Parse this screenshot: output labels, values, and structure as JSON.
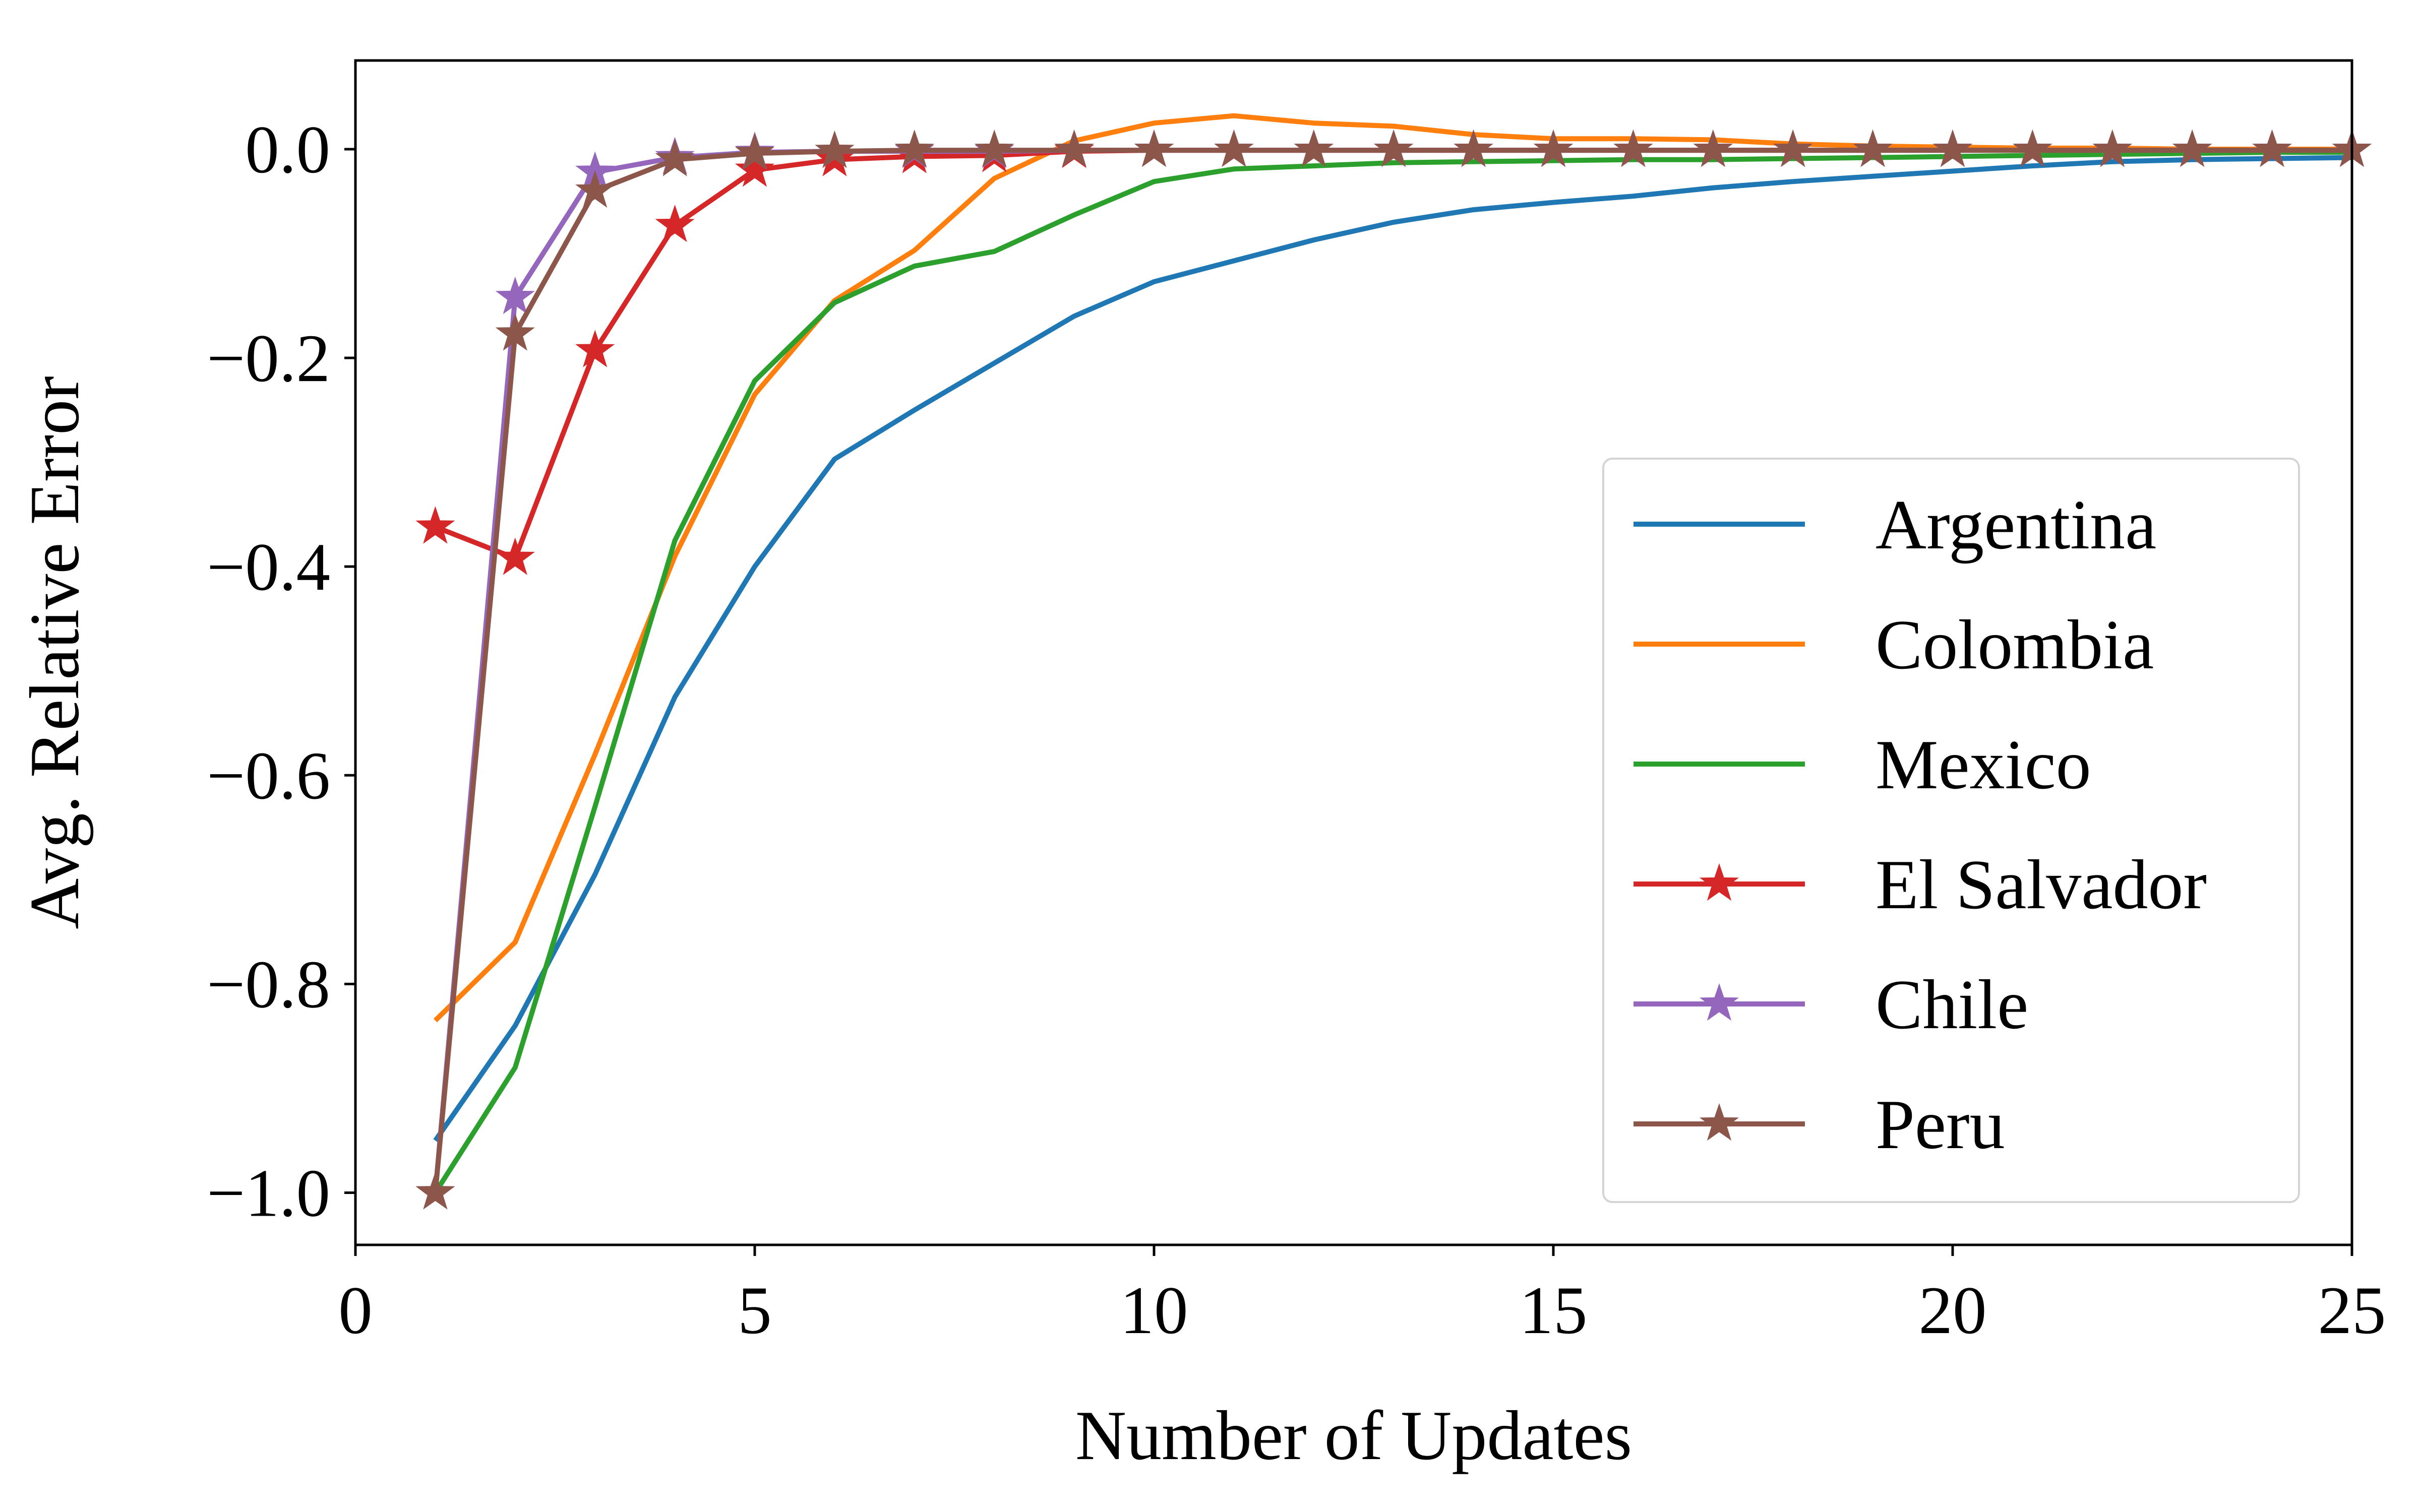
{
  "chart_data": {
    "type": "line",
    "title": "",
    "xlabel": "Number of Updates",
    "ylabel": "Avg. Relative Error",
    "xlim": [
      0,
      25
    ],
    "ylim": [
      -1.05,
      0.085
    ],
    "x_ticks": [
      0,
      5,
      10,
      15,
      20,
      25
    ],
    "x_tick_labels": [
      "0",
      "5",
      "10",
      "15",
      "20",
      "25"
    ],
    "y_ticks": [
      0.0,
      -0.2,
      -0.4,
      -0.6,
      -0.8,
      -1.0
    ],
    "y_tick_labels": [
      "0.0",
      "−0.2",
      "−0.4",
      "−0.6",
      "−0.8",
      "−1.0"
    ],
    "grid": false,
    "legend_position": "center-right",
    "x": [
      1,
      2,
      3,
      4,
      5,
      6,
      7,
      8,
      9,
      10,
      11,
      12,
      13,
      14,
      15,
      16,
      17,
      18,
      19,
      20,
      21,
      22,
      23,
      24,
      25
    ],
    "series": [
      {
        "name": "Argentina",
        "color": "#1f77b4",
        "marker": "none",
        "values": [
          -0.95,
          -0.84,
          -0.695,
          -0.525,
          -0.4,
          -0.297,
          -0.25,
          -0.205,
          -0.16,
          -0.127,
          -0.107,
          -0.087,
          -0.07,
          -0.058,
          -0.051,
          -0.045,
          -0.037,
          -0.031,
          -0.026,
          -0.021,
          -0.016,
          -0.012,
          -0.01,
          -0.009,
          -0.008
        ]
      },
      {
        "name": "Colombia",
        "color": "#ff7f0e",
        "marker": "none",
        "values": [
          -0.835,
          -0.76,
          -0.58,
          -0.39,
          -0.235,
          -0.145,
          -0.097,
          -0.028,
          0.008,
          0.025,
          0.032,
          0.025,
          0.022,
          0.014,
          0.01,
          0.01,
          0.009,
          0.005,
          0.003,
          0.002,
          0.001,
          0.001,
          0.0,
          0.0,
          0.0
        ]
      },
      {
        "name": "Mexico",
        "color": "#2ca02c",
        "marker": "none",
        "values": [
          -1.0,
          -0.88,
          -0.63,
          -0.375,
          -0.222,
          -0.147,
          -0.112,
          -0.098,
          -0.063,
          -0.031,
          -0.019,
          -0.016,
          -0.013,
          -0.012,
          -0.011,
          -0.01,
          -0.01,
          -0.009,
          -0.008,
          -0.007,
          -0.006,
          -0.005,
          -0.004,
          -0.003,
          -0.003
        ]
      },
      {
        "name": "El Salvador",
        "color": "#d62728",
        "marker": "star",
        "values": [
          -0.362,
          -0.392,
          -0.193,
          -0.073,
          -0.02,
          -0.01,
          -0.007,
          -0.006,
          -0.002,
          -0.001,
          -0.001,
          -0.001,
          -0.001,
          -0.001,
          -0.001,
          -0.001,
          -0.001,
          -0.001,
          -0.001,
          -0.001,
          -0.001,
          -0.001,
          -0.001,
          -0.001,
          -0.001
        ]
      },
      {
        "name": "Chile",
        "color": "#9467bd",
        "marker": "star",
        "values": [
          -1.0,
          -0.142,
          -0.022,
          -0.008,
          -0.003,
          -0.002,
          -0.002,
          -0.002,
          -0.001,
          -0.001,
          -0.001,
          -0.001,
          -0.001,
          -0.001,
          -0.001,
          -0.001,
          -0.001,
          -0.001,
          -0.001,
          -0.001,
          -0.001,
          -0.001,
          -0.001,
          -0.001,
          -0.001
        ]
      },
      {
        "name": "Peru",
        "color": "#8c564b",
        "marker": "star",
        "values": [
          -1.0,
          -0.177,
          -0.04,
          -0.01,
          -0.004,
          -0.002,
          -0.001,
          -0.001,
          -0.001,
          -0.001,
          -0.001,
          -0.001,
          -0.001,
          -0.001,
          -0.001,
          -0.001,
          -0.001,
          -0.001,
          -0.001,
          -0.001,
          -0.001,
          -0.001,
          -0.001,
          -0.001,
          -0.001
        ]
      }
    ]
  }
}
